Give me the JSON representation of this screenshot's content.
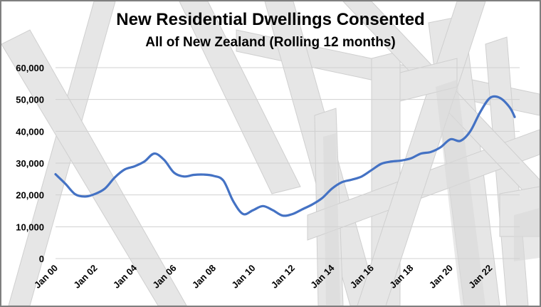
{
  "chart_data": {
    "type": "line",
    "title": "New Residential Dwellings Consented",
    "subtitle": "All of New Zealand (Rolling 12 months)",
    "xlabel": "",
    "ylabel": "",
    "ylim": [
      0,
      60000
    ],
    "yticks": [
      "0",
      "10,000",
      "20,000",
      "30,000",
      "40,000",
      "50,000",
      "60,000"
    ],
    "xticks": [
      "Jan 00",
      "Jan 02",
      "Jan 04",
      "Jan 06",
      "Jan 08",
      "Jan 10",
      "Jan 12",
      "Jan 14",
      "Jan 16",
      "Jan 18",
      "Jan 20",
      "Jan 22"
    ],
    "grid": true,
    "legend": "none",
    "line_color": "#4472c4",
    "series": [
      {
        "x": [
          "2000-01",
          "2000-07",
          "2001-01",
          "2001-07",
          "2002-01",
          "2002-07",
          "2003-01",
          "2003-07",
          "2004-01",
          "2004-07",
          "2005-01",
          "2005-07",
          "2006-01",
          "2006-07",
          "2007-01",
          "2007-07",
          "2008-01",
          "2008-07",
          "2009-01",
          "2009-07",
          "2010-01",
          "2010-07",
          "2011-01",
          "2011-07",
          "2012-01",
          "2012-07",
          "2013-01",
          "2013-07",
          "2014-01",
          "2014-07",
          "2015-01",
          "2015-07",
          "2016-01",
          "2016-07",
          "2017-01",
          "2017-07",
          "2018-01",
          "2018-07",
          "2019-01",
          "2019-07",
          "2020-01",
          "2020-07",
          "2021-01",
          "2021-07",
          "2022-01",
          "2022-07",
          "2023-01",
          "2023-04"
        ],
        "values": [
          26500,
          23500,
          20200,
          19500,
          20300,
          22000,
          25500,
          28000,
          29000,
          30500,
          33000,
          31000,
          27000,
          25800,
          26300,
          26400,
          26000,
          24500,
          18000,
          14000,
          15200,
          16500,
          15200,
          13500,
          14000,
          15500,
          17000,
          19000,
          22000,
          24000,
          24800,
          25800,
          27800,
          29800,
          30500,
          30800,
          31500,
          33000,
          33500,
          35000,
          37500,
          37000,
          40000,
          46000,
          50500,
          50500,
          47500,
          44500
        ]
      }
    ]
  }
}
